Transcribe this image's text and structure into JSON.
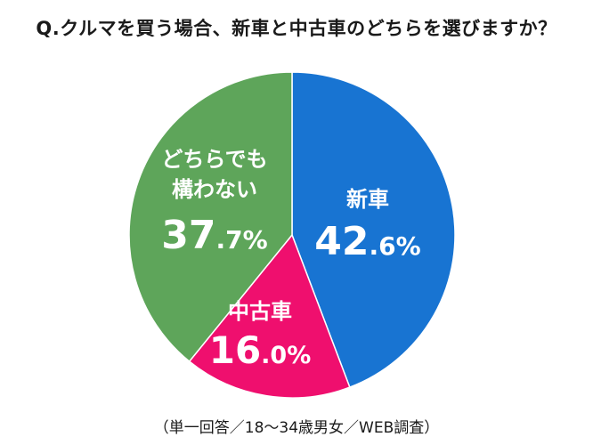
{
  "chart_data": {
    "type": "pie",
    "title": "Q.クルマを買う場合、新車と中古車のどちらを選びますか？",
    "note": "（単一回答／18〜34歳男女／WEB調査）",
    "slices": [
      {
        "label": "新車",
        "label_lines": [
          "新車"
        ],
        "value": 42.6,
        "value_text": "42.6%",
        "color": "#1874d2"
      },
      {
        "label": "中古車",
        "label_lines": [
          "中古車"
        ],
        "value": 16.0,
        "value_text": "16.0%",
        "color": "#ef0f6e"
      },
      {
        "label": "どちらでも構わない",
        "label_lines": [
          "どちらでも",
          "構わない"
        ],
        "value": 37.7,
        "value_text": "37.7%",
        "color": "#5ea55a"
      }
    ]
  }
}
